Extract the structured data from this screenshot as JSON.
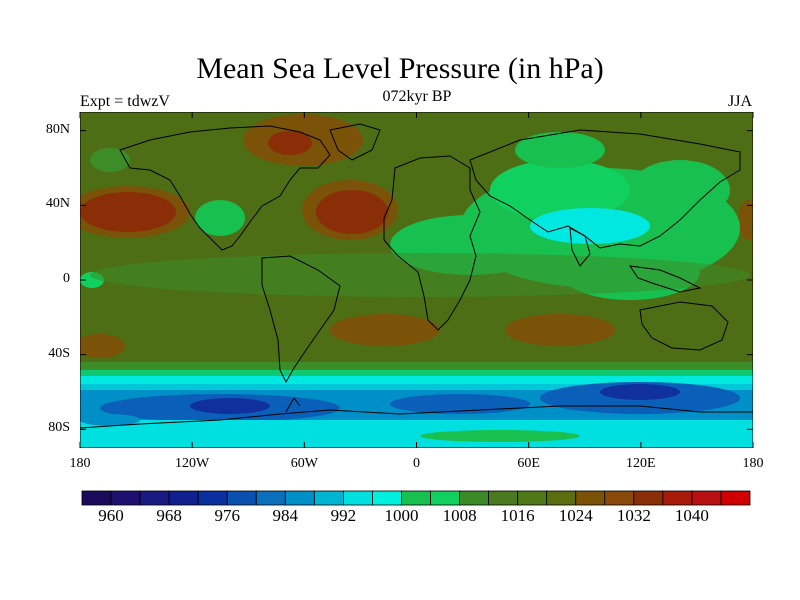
{
  "title": "Mean Sea Level Pressure (in hPa)",
  "subtitle_left": "Expt = tdwzV",
  "subtitle_center": "072kyr BP",
  "subtitle_right": "JJA",
  "lat_ticks": [
    "80N",
    "40N",
    "0",
    "40S",
    "80S"
  ],
  "lat_values": [
    80,
    40,
    0,
    -40,
    -80
  ],
  "lon_ticks": [
    "180",
    "120W",
    "60W",
    "0",
    "60E",
    "120E",
    "180"
  ],
  "lon_values": [
    -180,
    -120,
    -60,
    0,
    60,
    120,
    180
  ],
  "colorbar": {
    "labels": [
      "960",
      "968",
      "976",
      "984",
      "992",
      "1000",
      "1008",
      "1016",
      "1024",
      "1032",
      "1040"
    ],
    "colors": [
      "#1a0a5c",
      "#1e1070",
      "#1a1a80",
      "#10208e",
      "#0a30a0",
      "#0a50b0",
      "#0a70bb",
      "#0090c8",
      "#00b5d2",
      "#00e0e0",
      "#00f0e0",
      "#18c050",
      "#10d060",
      "#3a8a28",
      "#4a7a20",
      "#507818",
      "#5a6e10",
      "#7a5208",
      "#8a4a0a",
      "#8a2e08",
      "#a81a0a",
      "#b81010",
      "#d00000"
    ]
  },
  "ocean_color": "#4d6e14",
  "coast_color": "#000000"
}
